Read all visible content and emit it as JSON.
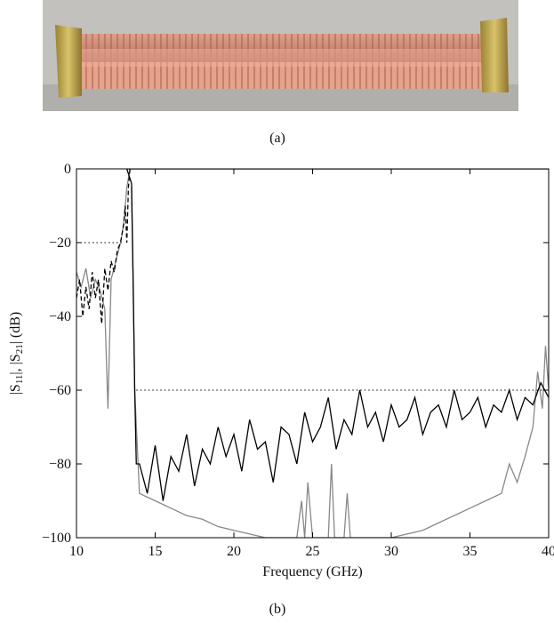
{
  "photo": {
    "caption": "(a)"
  },
  "chart_data": {
    "type": "line",
    "caption": "(b)",
    "xlabel": "Frequency (GHz)",
    "ylabel_parts": [
      "|S",
      "11",
      "|, |S",
      "21",
      "| (dB)"
    ],
    "xlim": [
      10,
      40
    ],
    "ylim": [
      -100,
      0
    ],
    "xticks": [
      10,
      15,
      20,
      25,
      30,
      35,
      40
    ],
    "yticks": [
      {
        "value": -100,
        "label": "−100"
      },
      {
        "value": -80,
        "label": "−80"
      },
      {
        "value": -60,
        "label": "−60"
      },
      {
        "value": -40,
        "label": "−40"
      },
      {
        "value": -20,
        "label": "−20"
      },
      0
    ],
    "reference_lines": [
      {
        "x": [
          10,
          13
        ],
        "y": -20
      },
      {
        "x": [
          13.8,
          40
        ],
        "y": -60
      }
    ],
    "series": [
      {
        "color": "#888888",
        "dash": "solid",
        "x": [
          10,
          10.3,
          10.6,
          10.9,
          11.2,
          11.5,
          11.8,
          12,
          12.2,
          12.5,
          12.8,
          13,
          13.2,
          13.4,
          14,
          20,
          30,
          40
        ],
        "values": [
          -28,
          -32,
          -27,
          -35,
          -30,
          -33,
          -38,
          -65,
          -30,
          -25,
          -20,
          -15,
          -5,
          0,
          0,
          0,
          0,
          0
        ]
      },
      {
        "color": "#888888",
        "dash": "solid",
        "x": [
          13.5,
          13.7,
          14,
          15,
          16,
          17,
          18,
          19,
          20,
          21,
          22,
          23,
          24,
          24.3,
          24.5,
          24.7,
          25,
          26,
          26.2,
          26.4,
          27,
          27.2,
          27.4,
          28,
          29,
          30,
          31,
          32,
          33,
          34,
          35,
          36,
          37,
          37.5,
          38,
          38.5,
          39,
          39.3,
          39.6,
          39.8,
          40
        ],
        "values": [
          -5,
          -60,
          -88,
          -90,
          -92,
          -94,
          -95,
          -97,
          -98,
          -99,
          -100,
          -100,
          -100,
          -90,
          -100,
          -85,
          -100,
          -100,
          -80,
          -100,
          -100,
          -88,
          -100,
          -100,
          -100,
          -100,
          -99,
          -98,
          -96,
          -94,
          -92,
          -90,
          -88,
          -80,
          -85,
          -78,
          -70,
          -55,
          -65,
          -48,
          -60
        ]
      },
      {
        "color": "#000000",
        "dash": "dashed",
        "x": [
          10,
          10.2,
          10.4,
          10.6,
          10.8,
          11,
          11.2,
          11.4,
          11.6,
          11.8,
          12,
          12.2,
          12.4,
          12.6,
          12.8,
          13,
          13.1,
          13.2,
          13.3,
          13.4
        ],
        "values": [
          -35,
          -30,
          -40,
          -32,
          -38,
          -28,
          -35,
          -30,
          -42,
          -27,
          -33,
          -25,
          -28,
          -22,
          -20,
          -15,
          -10,
          -20,
          -5,
          0
        ]
      },
      {
        "color": "#000000",
        "dash": "solid",
        "x": [
          13.2,
          40
        ],
        "values": [
          0,
          0
        ]
      },
      {
        "color": "#000000",
        "dash": "solid",
        "x": [
          13.2,
          13.5,
          13.6,
          13.7,
          13.8,
          14,
          14.5,
          15,
          15.5,
          16,
          16.5,
          17,
          17.5,
          18,
          18.5,
          19,
          19.5,
          20,
          20.5,
          21,
          21.5,
          22,
          22.5,
          23,
          23.5,
          24,
          24.5,
          25,
          25.5,
          26,
          26.5,
          27,
          27.5,
          28,
          28.5,
          29,
          29.5,
          30,
          30.5,
          31,
          31.5,
          32,
          32.5,
          33,
          33.5,
          34,
          34.5,
          35,
          35.5,
          36,
          36.5,
          37,
          37.5,
          38,
          38.5,
          39,
          39.5,
          40
        ],
        "values": [
          0,
          -4,
          -30,
          -60,
          -80,
          -80,
          -88,
          -75,
          -90,
          -78,
          -82,
          -72,
          -86,
          -76,
          -80,
          -70,
          -78,
          -72,
          -82,
          -68,
          -76,
          -74,
          -85,
          -70,
          -72,
          -80,
          -66,
          -74,
          -70,
          -62,
          -76,
          -68,
          -72,
          -60,
          -70,
          -66,
          -74,
          -64,
          -70,
          -68,
          -62,
          -72,
          -66,
          -64,
          -70,
          -60,
          -68,
          -66,
          -62,
          -70,
          -64,
          -66,
          -60,
          -68,
          -62,
          -64,
          -58,
          -62
        ]
      }
    ]
  }
}
